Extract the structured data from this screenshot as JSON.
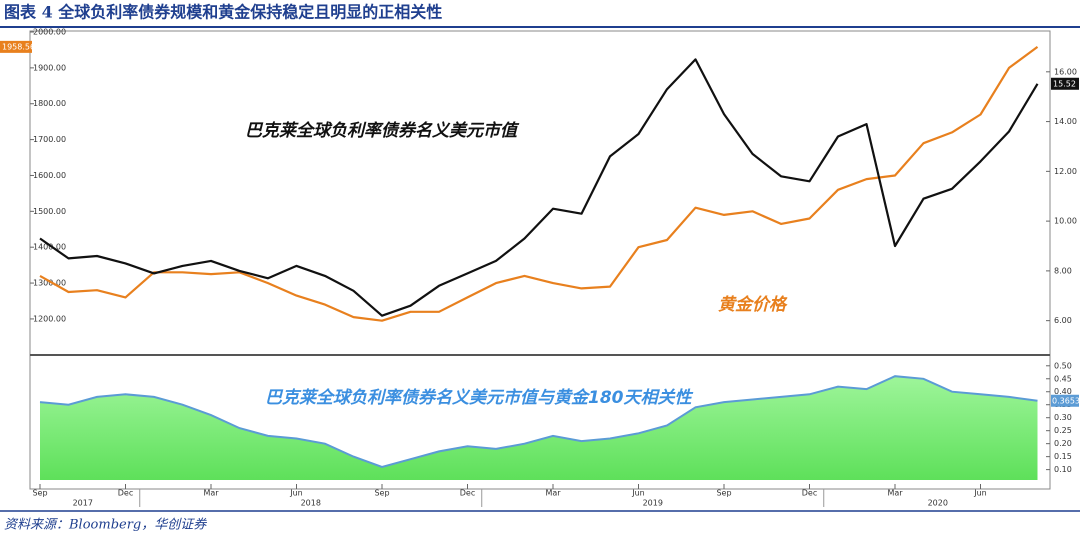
{
  "title": "图表 4 全球负利率债券规模和黄金保持稳定且明显的正相关性",
  "source": "资料来源：Bloomberg，华创证券",
  "chart_data": [
    {
      "type": "line",
      "annotations": [
        "巴克莱全球负利率债券名义美元市值",
        "黄金价格"
      ],
      "x": [
        "2017-09",
        "2017-10",
        "2017-11",
        "2017-12",
        "2018-01",
        "2018-02",
        "2018-03",
        "2018-04",
        "2018-05",
        "2018-06",
        "2018-07",
        "2018-08",
        "2018-09",
        "2018-10",
        "2018-11",
        "2018-12",
        "2019-01",
        "2019-02",
        "2019-03",
        "2019-04",
        "2019-05",
        "2019-06",
        "2019-07",
        "2019-08",
        "2019-09",
        "2019-10",
        "2019-11",
        "2019-12",
        "2020-01",
        "2020-02",
        "2020-03",
        "2020-04",
        "2020-05",
        "2020-06",
        "2020-07",
        "2020-08"
      ],
      "series": [
        {
          "name": "黄金价格",
          "color": "#e8801e",
          "axis": "y",
          "values": [
            1320,
            1275,
            1280,
            1260,
            1330,
            1330,
            1325,
            1330,
            1300,
            1265,
            1240,
            1205,
            1195,
            1220,
            1220,
            1260,
            1300,
            1320,
            1300,
            1285,
            1290,
            1400,
            1420,
            1510,
            1490,
            1500,
            1465,
            1480,
            1560,
            1590,
            1600,
            1690,
            1720,
            1770,
            1900,
            1958.56
          ]
        },
        {
          "name": "巴克莱全球负利率债券名义美元市值",
          "color": "#111111",
          "axis": "y2",
          "values": [
            9.3,
            8.5,
            8.6,
            8.3,
            7.9,
            8.2,
            8.4,
            8.0,
            7.7,
            8.2,
            7.8,
            7.2,
            6.2,
            6.6,
            7.4,
            7.9,
            8.4,
            9.3,
            10.5,
            10.3,
            12.6,
            13.5,
            15.3,
            16.5,
            14.3,
            12.7,
            11.8,
            11.6,
            13.4,
            13.9,
            9.0,
            10.9,
            11.3,
            12.4,
            13.6,
            15.52
          ]
        }
      ],
      "ylim": [
        1105,
        2000
      ],
      "yticks": [
        {
          "value": 1200,
          "label": "1200.00"
        },
        {
          "value": 1300,
          "label": "1300.00"
        },
        {
          "value": 1400,
          "label": "1400.00"
        },
        {
          "value": 1500,
          "label": "1500.00"
        },
        {
          "value": 1600,
          "label": "1600.00"
        },
        {
          "value": 1700,
          "label": "1700.00"
        },
        {
          "value": 1800,
          "label": "1800.00"
        },
        {
          "value": 1900,
          "label": "1900.00"
        },
        {
          "value": 2000,
          "label": "2000.00"
        }
      ],
      "y2lim": [
        4.7,
        17.6
      ],
      "y2ticks": [
        {
          "value": 6,
          "label": "6.00"
        },
        {
          "value": 8,
          "label": "8.00"
        },
        {
          "value": 10,
          "label": "10.00"
        },
        {
          "value": 12,
          "label": "12.00"
        },
        {
          "value": 14,
          "label": "14.00"
        },
        {
          "value": 16,
          "label": "16.00"
        }
      ]
    },
    {
      "type": "area",
      "annotations": [
        "巴克莱全球负利率债券名义美元市值与黄金180天相关性"
      ],
      "x": [
        "2017-09",
        "2017-10",
        "2017-11",
        "2017-12",
        "2018-01",
        "2018-02",
        "2018-03",
        "2018-04",
        "2018-05",
        "2018-06",
        "2018-07",
        "2018-08",
        "2018-09",
        "2018-10",
        "2018-11",
        "2018-12",
        "2019-01",
        "2019-02",
        "2019-03",
        "2019-04",
        "2019-05",
        "2019-06",
        "2019-07",
        "2019-08",
        "2019-09",
        "2019-10",
        "2019-11",
        "2019-12",
        "2020-01",
        "2020-02",
        "2020-03",
        "2020-04",
        "2020-05",
        "2020-06",
        "2020-07",
        "2020-08"
      ],
      "series": [
        {
          "name": "巴克莱全球负利率债券名义美元市值与黄金180天相关性",
          "color": "#5b9bd5",
          "values": [
            0.36,
            0.35,
            0.38,
            0.39,
            0.38,
            0.35,
            0.31,
            0.26,
            0.23,
            0.22,
            0.2,
            0.15,
            0.11,
            0.14,
            0.17,
            0.19,
            0.18,
            0.2,
            0.23,
            0.21,
            0.22,
            0.24,
            0.27,
            0.34,
            0.36,
            0.37,
            0.38,
            0.39,
            0.42,
            0.41,
            0.46,
            0.45,
            0.4,
            0.39,
            0.38,
            0.3653
          ]
        }
      ],
      "ylim": [
        0.06,
        0.53
      ],
      "yticks": [
        {
          "value": 0.1,
          "label": "0.10"
        },
        {
          "value": 0.15,
          "label": "0.15"
        },
        {
          "value": 0.2,
          "label": "0.20"
        },
        {
          "value": 0.25,
          "label": "0.25"
        },
        {
          "value": 0.3,
          "label": "0.30"
        },
        {
          "value": 0.35,
          "label": "0.35"
        },
        {
          "value": 0.4,
          "label": "0.40"
        },
        {
          "value": 0.45,
          "label": "0.45"
        },
        {
          "value": 0.5,
          "label": "0.50"
        }
      ],
      "xticks": [
        {
          "value": "2017-09",
          "label": "Sep"
        },
        {
          "value": "2017-12",
          "label": "Dec"
        },
        {
          "value": "2018-03",
          "label": "Mar"
        },
        {
          "value": "2018-06",
          "label": "Jun"
        },
        {
          "value": "2018-09",
          "label": "Sep"
        },
        {
          "value": "2018-12",
          "label": "Dec"
        },
        {
          "value": "2019-03",
          "label": "Mar"
        },
        {
          "value": "2019-06",
          "label": "Jun"
        },
        {
          "value": "2019-09",
          "label": "Sep"
        },
        {
          "value": "2019-12",
          "label": "Dec"
        },
        {
          "value": "2020-03",
          "label": "Mar"
        },
        {
          "value": "2020-06",
          "label": "Jun"
        }
      ],
      "year_labels": [
        "2017",
        "2018",
        "2019",
        "2020"
      ]
    }
  ]
}
